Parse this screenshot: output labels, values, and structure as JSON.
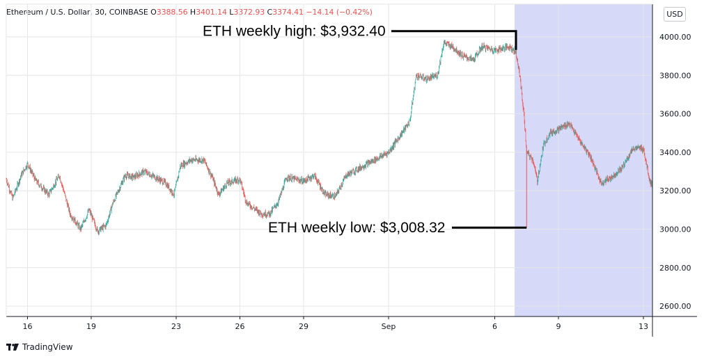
{
  "header": {
    "symbol": "Ethereum / U.S. Dollar, 30, COINBASE",
    "o_label": "O",
    "o_value": "3388.56",
    "h_label": "H",
    "h_value": "3401.14",
    "l_label": "L",
    "l_value": "3372.93",
    "c_label": "C",
    "c_value": "3374.41",
    "change": "−14.14 (−0.42%)"
  },
  "currency_button": "USD",
  "branding": {
    "name": "TradingView",
    "logo_icon": "tradingview-logo-icon"
  },
  "colors": {
    "up": "#26a69a",
    "down": "#ef5350",
    "highlight": "#d6d9f7",
    "grid": "#e6e6e6",
    "annotation": "#000000"
  },
  "chart_data": {
    "type": "candlestick",
    "title": "",
    "interval": "30",
    "xlabel": "",
    "ylabel": "",
    "x_ticks": [
      "16",
      "19",
      "23",
      "26",
      "29",
      "Sep",
      "6",
      "9",
      "13"
    ],
    "y_ticks": [
      "4000.00",
      "3800.00",
      "3600.00",
      "3400.00",
      "3200.00",
      "3000.00",
      "2800.00",
      "2600.00"
    ],
    "ylim": [
      2560,
      4150
    ],
    "xlim": [
      "Aug 15",
      "Sep 14"
    ],
    "grid": true,
    "highlight_region": {
      "from": "Sep 7",
      "to": "Sep 14"
    },
    "price_path": [
      [
        "Aug 15",
        3260
      ],
      [
        "Aug 15.3",
        3160
      ],
      [
        "Aug 15.7",
        3280
      ],
      [
        "Aug 16",
        3340
      ],
      [
        "Aug 16.4",
        3250
      ],
      [
        "Aug 17",
        3180
      ],
      [
        "Aug 17.5",
        3280
      ],
      [
        "Aug 18",
        3080
      ],
      [
        "Aug 18.5",
        3000
      ],
      [
        "Aug 18.9",
        3100
      ],
      [
        "Aug 19.3",
        2990
      ],
      [
        "Aug 19.7",
        3020
      ],
      [
        "Aug 20",
        3130
      ],
      [
        "Aug 20.6",
        3280
      ],
      [
        "Aug 21",
        3270
      ],
      [
        "Aug 21.5",
        3300
      ],
      [
        "Aug 22",
        3270
      ],
      [
        "Aug 22.5",
        3240
      ],
      [
        "Aug 22.9",
        3180
      ],
      [
        "Aug 23.2",
        3330
      ],
      [
        "Aug 23.7",
        3360
      ],
      [
        "Aug 24.3",
        3360
      ],
      [
        "Aug 24.7",
        3270
      ],
      [
        "Aug 25",
        3180
      ],
      [
        "Aug 25.4",
        3240
      ],
      [
        "Aug 26",
        3260
      ],
      [
        "Aug 26.3",
        3140
      ],
      [
        "Aug 27",
        3080
      ],
      [
        "Aug 27.4",
        3080
      ],
      [
        "Aug 27.8",
        3140
      ],
      [
        "Aug 28.2",
        3270
      ],
      [
        "Aug 28.6",
        3260
      ],
      [
        "Aug 29",
        3250
      ],
      [
        "Aug 29.5",
        3280
      ],
      [
        "Aug 30",
        3180
      ],
      [
        "Aug 30.5",
        3170
      ],
      [
        "Aug 31",
        3280
      ],
      [
        "Sep 1",
        3400
      ],
      [
        "Sep 1.5",
        3480
      ],
      [
        "Sep 2",
        3560
      ],
      [
        "Sep 2.3",
        3800
      ],
      [
        "Sep 2.8",
        3780
      ],
      [
        "Sep 3.3",
        3800
      ],
      [
        "Sep 3.6",
        3970
      ],
      [
        "Sep 4",
        3950
      ],
      [
        "Sep 4.5",
        3900
      ],
      [
        "Sep 5",
        3880
      ],
      [
        "Sep 5.4",
        3950
      ],
      [
        "Sep 6",
        3930
      ],
      [
        "Sep 6.7",
        3950
      ],
      [
        "Sep 7",
        3920
      ],
      [
        "Sep 7.2",
        3780
      ],
      [
        "Sep 7.4",
        3560
      ],
      [
        "Sep 7.5",
        3400
      ],
      [
        "Sep 7.8",
        3360
      ],
      [
        "Sep 8",
        3250
      ],
      [
        "Sep 8.3",
        3440
      ],
      [
        "Sep 8.6",
        3500
      ],
      [
        "Sep 9",
        3520
      ],
      [
        "Sep 9.5",
        3550
      ],
      [
        "Sep 10",
        3460
      ],
      [
        "Sep 10.5",
        3380
      ],
      [
        "Sep 11",
        3240
      ],
      [
        "Sep 11.5",
        3270
      ],
      [
        "Sep 12",
        3320
      ],
      [
        "Sep 12.5",
        3420
      ],
      [
        "Sep 13",
        3420
      ],
      [
        "Sep 13.3",
        3250
      ],
      [
        "Sep 13.7",
        3180
      ],
      [
        "Sep 14",
        3300
      ],
      [
        "Sep 14.5",
        3380
      ]
    ],
    "annotations": [
      {
        "text": "ETH weekly high: $3,932.40",
        "date": "Sep 7",
        "price": 3932.4
      },
      {
        "text": "ETH weekly low: $3,008.32",
        "date": "Sep 7.5",
        "price": 3008.32
      }
    ]
  }
}
